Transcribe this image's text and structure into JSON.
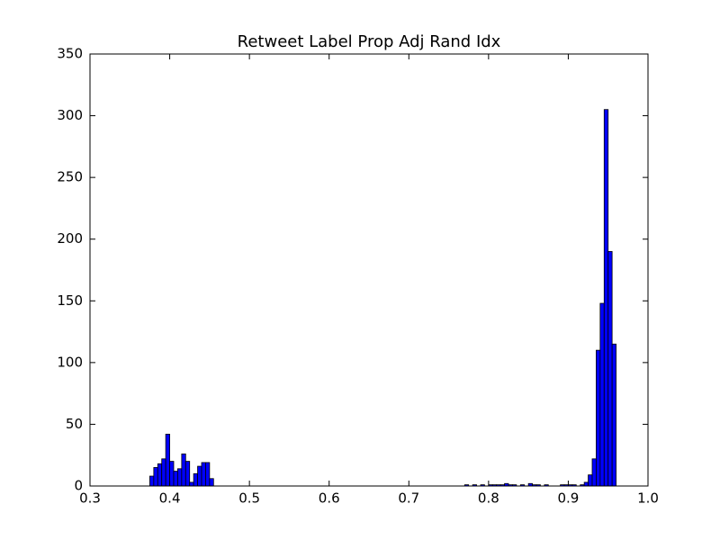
{
  "chart_data": {
    "type": "histogram",
    "title": "Retweet Label Prop Adj Rand Idx",
    "bins": [
      0.375,
      0.38,
      0.385,
      0.39,
      0.395,
      0.4,
      0.405,
      0.41,
      0.415,
      0.42,
      0.425,
      0.43,
      0.435,
      0.44,
      0.445,
      0.45,
      0.455,
      0.46,
      0.465,
      0.47,
      0.475,
      0.48,
      0.485,
      0.49,
      0.495,
      0.5,
      0.505,
      0.51,
      0.515,
      0.52,
      0.525,
      0.53,
      0.535,
      0.54,
      0.545,
      0.55,
      0.555,
      0.56,
      0.565,
      0.57,
      0.575,
      0.58,
      0.585,
      0.59,
      0.595,
      0.6,
      0.605,
      0.61,
      0.615,
      0.62,
      0.625,
      0.63,
      0.635,
      0.64,
      0.645,
      0.65,
      0.655,
      0.66,
      0.665,
      0.67,
      0.675,
      0.68,
      0.685,
      0.69,
      0.695,
      0.7,
      0.705,
      0.71,
      0.715,
      0.72,
      0.725,
      0.73,
      0.735,
      0.74,
      0.745,
      0.75,
      0.755,
      0.76,
      0.765,
      0.77,
      0.775,
      0.78,
      0.785,
      0.79,
      0.795,
      0.8,
      0.805,
      0.81,
      0.815,
      0.82,
      0.825,
      0.83,
      0.835,
      0.84,
      0.845,
      0.85,
      0.855,
      0.86,
      0.865,
      0.87,
      0.875,
      0.88,
      0.885,
      0.89,
      0.895,
      0.9,
      0.905,
      0.91,
      0.915,
      0.92,
      0.925,
      0.93,
      0.935,
      0.94,
      0.945,
      0.95,
      0.955,
      0.96
    ],
    "values": [
      8,
      15,
      18,
      22,
      42,
      20,
      12,
      14,
      26,
      20,
      3,
      10,
      16,
      19,
      19,
      6,
      0,
      0,
      0,
      0,
      0,
      0,
      0,
      0,
      0,
      0,
      0,
      0,
      0,
      0,
      0,
      0,
      0,
      0,
      0,
      0,
      0,
      0,
      0,
      0,
      0,
      0,
      0,
      0,
      0,
      0,
      0,
      0,
      0,
      0,
      0,
      0,
      0,
      0,
      0,
      0,
      0,
      0,
      0,
      0,
      0,
      0,
      0,
      0,
      0,
      0,
      0,
      0,
      0,
      0,
      0,
      0,
      0,
      0,
      0,
      0,
      0,
      0,
      0,
      1,
      0,
      1,
      0,
      1,
      0,
      1,
      1,
      1,
      1,
      2,
      1,
      1,
      0,
      1,
      0,
      2,
      1,
      1,
      0,
      1,
      0,
      0,
      0,
      1,
      1,
      1,
      1,
      0,
      1,
      3,
      9,
      22,
      110,
      148,
      305,
      190,
      115
    ],
    "color": "#0000ff",
    "xlim": [
      0.3,
      1.0
    ],
    "xticks": [
      0.3,
      0.4,
      0.5,
      0.6,
      0.7,
      0.8,
      0.9,
      {
        "value": 1.0,
        "label": "1.0"
      }
    ],
    "ylim": [
      0,
      350
    ],
    "yticks": [
      0,
      50,
      100,
      150,
      200,
      250,
      300,
      350
    ]
  }
}
